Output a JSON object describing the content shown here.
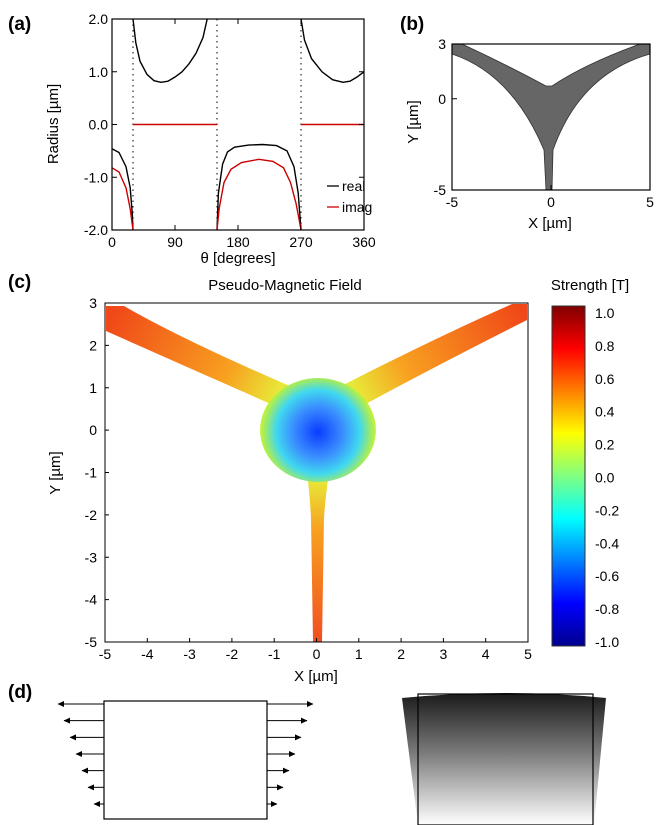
{
  "figure": {
    "panel_labels": [
      "(a)",
      "(b)",
      "(c)",
      "(d)"
    ]
  },
  "chart_data": [
    {
      "panel": "(a)",
      "type": "line",
      "title": "",
      "xlabel": "θ [degrees]",
      "ylabel": "Radius [µm]",
      "xlim": [
        0,
        360
      ],
      "ylim": [
        -2.0,
        2.0
      ],
      "xticks": [
        0,
        90,
        180,
        270,
        360
      ],
      "xtick_labels": [
        "0",
        "90",
        "180",
        "270",
        "360"
      ],
      "yticks": [
        -2.0,
        -1.0,
        0.0,
        1.0,
        2.0
      ],
      "ytick_labels": [
        "-2.0",
        "-1.0",
        "0.0",
        "1.0",
        "2.0"
      ],
      "legend_position": "bottom-right",
      "vertical_dotted_lines": [
        30,
        150,
        270
      ],
      "series": [
        {
          "name": "real",
          "color": "#000000",
          "segments": [
            [
              [
                0,
                -0.46
              ],
              [
                10,
                -0.53
              ],
              [
                20,
                -0.8
              ],
              [
                26,
                -1.2
              ],
              [
                29,
                -1.7
              ],
              [
                30,
                -2.0
              ]
            ],
            [
              [
                30,
                2.0
              ],
              [
                34,
                1.55
              ],
              [
                40,
                1.2
              ],
              [
                50,
                0.95
              ],
              [
                60,
                0.83
              ],
              [
                70,
                0.8
              ],
              [
                80,
                0.82
              ],
              [
                90,
                0.9
              ],
              [
                100,
                1.0
              ],
              [
                110,
                1.15
              ],
              [
                120,
                1.35
              ],
              [
                130,
                1.65
              ],
              [
                136,
                2.0
              ]
            ],
            [
              [
                150,
                -2.0
              ],
              [
                152,
                -1.3
              ],
              [
                158,
                -0.75
              ],
              [
                165,
                -0.52
              ],
              [
                175,
                -0.43
              ],
              [
                195,
                -0.39
              ],
              [
                215,
                -0.38
              ],
              [
                235,
                -0.4
              ],
              [
                250,
                -0.5
              ],
              [
                260,
                -0.8
              ],
              [
                266,
                -1.3
              ],
              [
                270,
                -2.0
              ]
            ],
            [
              [
                270,
                2.0
              ],
              [
                275,
                1.6
              ],
              [
                285,
                1.25
              ],
              [
                300,
                1.0
              ],
              [
                315,
                0.85
              ],
              [
                330,
                0.8
              ],
              [
                340,
                0.82
              ],
              [
                350,
                0.9
              ],
              [
                360,
                1.0
              ]
            ]
          ]
        },
        {
          "name": "imag",
          "color": "#cc0000",
          "segments": [
            [
              [
                0,
                -0.82
              ],
              [
                10,
                -0.9
              ],
              [
                20,
                -1.2
              ],
              [
                26,
                -1.6
              ],
              [
                29,
                -1.9
              ],
              [
                30,
                -2.0
              ]
            ],
            [
              [
                30,
                0.0
              ],
              [
                150,
                0.0
              ]
            ],
            [
              [
                150,
                -2.0
              ],
              [
                153,
                -1.6
              ],
              [
                160,
                -1.1
              ],
              [
                170,
                -0.85
              ],
              [
                185,
                -0.72
              ],
              [
                210,
                -0.66
              ],
              [
                230,
                -0.7
              ],
              [
                245,
                -0.82
              ],
              [
                255,
                -1.1
              ],
              [
                263,
                -1.5
              ],
              [
                268,
                -1.85
              ],
              [
                270,
                -2.0
              ]
            ],
            [
              [
                270,
                0.0
              ],
              [
                360,
                0.0
              ]
            ]
          ]
        }
      ]
    },
    {
      "panel": "(b)",
      "type": "area",
      "title": "",
      "xlabel": "X [µm]",
      "ylabel": "Y [µm]",
      "xlim": [
        -5,
        5
      ],
      "ylim": [
        -5,
        3
      ],
      "xticks": [
        -5,
        0,
        5
      ],
      "xtick_labels": [
        "-5",
        "0",
        "5"
      ],
      "yticks": [
        -5,
        0,
        3
      ],
      "ytick_labels": [
        "-5",
        "0",
        "3"
      ],
      "fill_color": "#666666",
      "shape": "three-armed curved junction"
    },
    {
      "panel": "(c)",
      "type": "heatmap",
      "title": "Pseudo-Magnetic Field",
      "xlabel": "X [µm]",
      "ylabel": "Y [µm]",
      "xlim": [
        -5,
        5
      ],
      "ylim": [
        -5,
        3
      ],
      "xticks": [
        -5,
        -4,
        -3,
        -2,
        -1,
        0,
        1,
        2,
        3,
        4,
        5
      ],
      "xtick_labels": [
        "-5",
        "-4",
        "-3",
        "-2",
        "-1",
        "0",
        "1",
        "2",
        "3",
        "4",
        "5"
      ],
      "yticks": [
        -5,
        -4,
        -3,
        -2,
        -1,
        0,
        1,
        2,
        3
      ],
      "ytick_labels": [
        "-5",
        "-4",
        "-3",
        "-2",
        "-1",
        "0",
        "1",
        "2",
        "3"
      ],
      "colorbar": {
        "label": "Strength [T]",
        "range": [
          -1.0,
          1.0
        ],
        "ticks": [
          1.0,
          0.8,
          0.6,
          0.4,
          0.2,
          0.0,
          -0.2,
          -0.4,
          -0.6,
          -0.8,
          -1.0
        ],
        "tick_labels": [
          "1.0",
          "0.8",
          "0.6",
          "0.4",
          "0.2",
          "0.0",
          "-0.2",
          "-0.4",
          "-0.6",
          "-0.8",
          "-1.0"
        ],
        "colormap": "jet"
      },
      "field_description": "strongest negative (~-0.9) at origin, rising to ~0.5 along arms"
    }
  ],
  "diagram_d": {
    "panel": "(d)",
    "left_arrow_count": 7,
    "right_arrow_count": 7
  }
}
